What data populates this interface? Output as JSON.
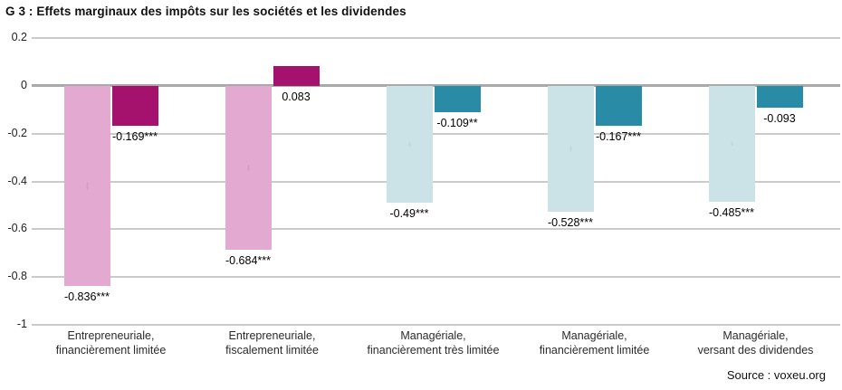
{
  "title": "G 3 : Effets marginaux des impôts sur les sociétés et les dividendes",
  "source": "Source : voxeu.org",
  "chart_data": {
    "type": "bar",
    "title": "G 3 : Effets marginaux des impôts sur les sociétés et les dividendes",
    "xlabel": "",
    "ylabel": "",
    "ylim": [
      -1,
      0.2
    ],
    "grid": true,
    "legend": "none",
    "yticks": [
      {
        "value": 0.2,
        "label": "0.2"
      },
      {
        "value": 0,
        "label": "0"
      },
      {
        "value": -0.2,
        "label": "-0.2"
      },
      {
        "value": -0.4,
        "label": "-0.4"
      },
      {
        "value": -0.6,
        "label": "-0.6"
      },
      {
        "value": -0.8,
        "label": "-0.8"
      },
      {
        "value": -1,
        "label": "-1"
      }
    ],
    "colors": {
      "entrepreneurial_light": "#E3A9D0",
      "entrepreneurial_dark": "#A4126D",
      "managerial_light": "#CBE2E6",
      "managerial_dark": "#2A8BA6"
    },
    "groups": [
      {
        "category_line1": "Entrepreneuriale,",
        "category_line2": "financièrement limitée",
        "bars": [
          {
            "value": -0.836,
            "label": "-0.836***",
            "color": "#E3A9D0",
            "texture": "pink"
          },
          {
            "value": -0.169,
            "label": "-0.169***",
            "color": "#A4126D",
            "texture": "none"
          }
        ]
      },
      {
        "category_line1": "Entrepreneuriale,",
        "category_line2": "fiscalement limitée",
        "bars": [
          {
            "value": -0.684,
            "label": "-0.684***",
            "color": "#E3A9D0",
            "texture": "pink"
          },
          {
            "value": 0.083,
            "label": "0.083",
            "color": "#A4126D",
            "texture": "none"
          }
        ]
      },
      {
        "category_line1": "Managériale,",
        "category_line2": "financièrement très limitée",
        "bars": [
          {
            "value": -0.49,
            "label": "-0.49***",
            "color": "#CBE2E6",
            "texture": "blue"
          },
          {
            "value": -0.109,
            "label": "-0.109**",
            "color": "#2A8BA6",
            "texture": "none"
          }
        ]
      },
      {
        "category_line1": "Managériale,",
        "category_line2": "financièrement limitée",
        "bars": [
          {
            "value": -0.528,
            "label": "-0.528***",
            "color": "#CBE2E6",
            "texture": "blue"
          },
          {
            "value": -0.167,
            "label": "-0.167***",
            "color": "#2A8BA6",
            "texture": "none"
          }
        ]
      },
      {
        "category_line1": "Managériale,",
        "category_line2": "versant des dividendes",
        "bars": [
          {
            "value": -0.485,
            "label": "-0.485***",
            "color": "#CBE2E6",
            "texture": "blue"
          },
          {
            "value": -0.093,
            "label": "-0.093",
            "color": "#2A8BA6",
            "texture": "none"
          }
        ]
      }
    ]
  }
}
